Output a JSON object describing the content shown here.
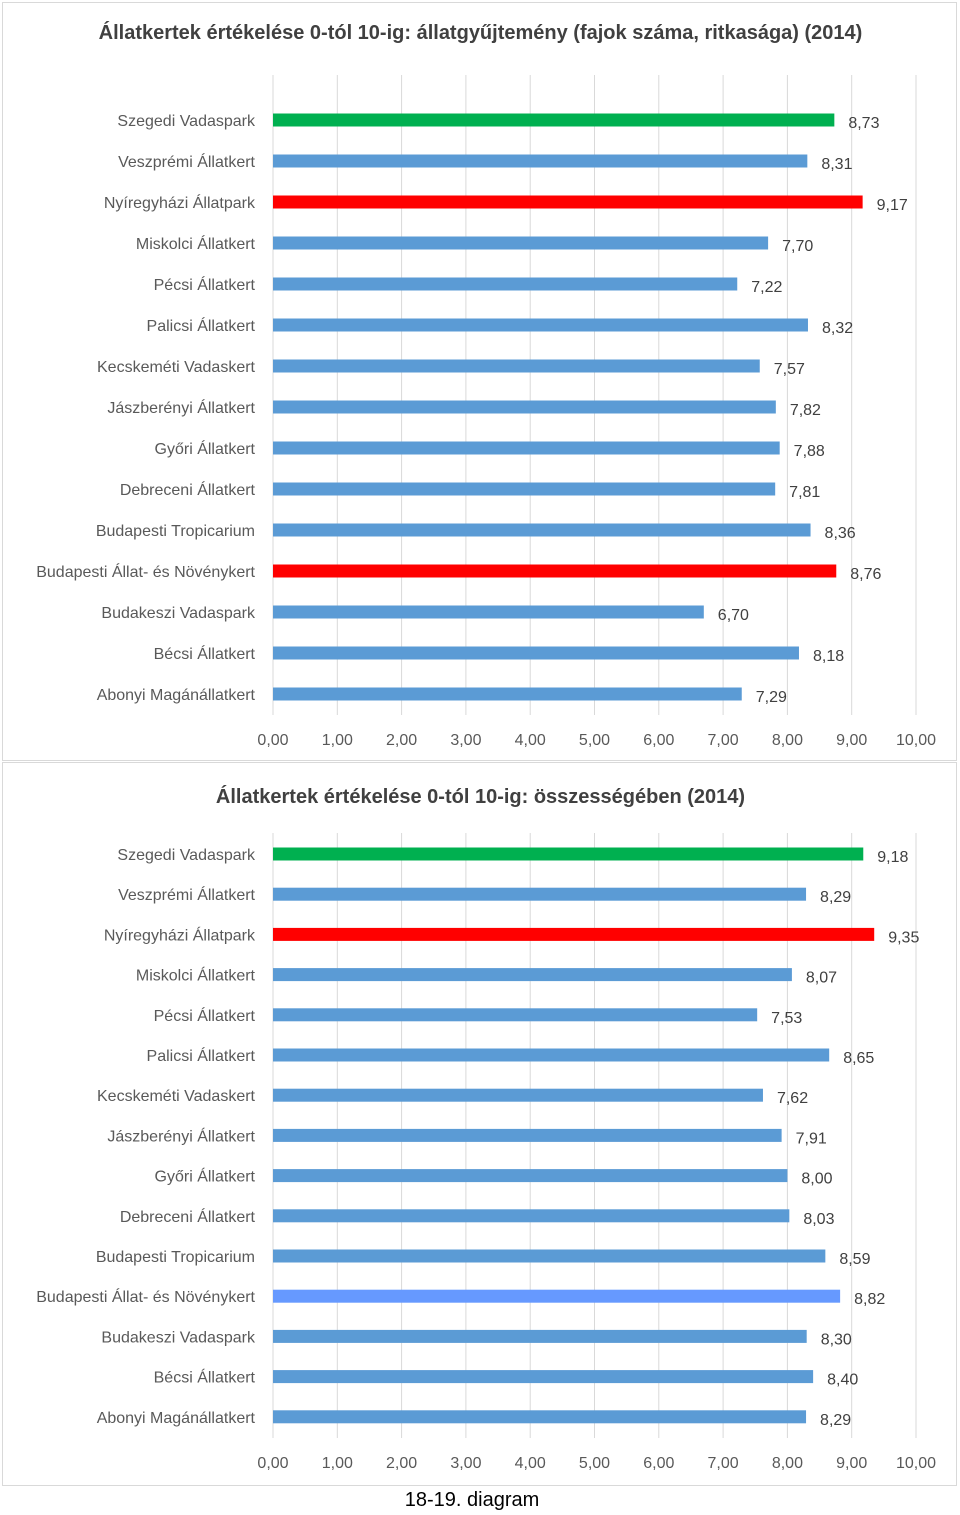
{
  "colors": {
    "default": "#5b9bd5",
    "highlight_green": "#00b050",
    "highlight_red": "#ff0000",
    "highlight_lightblue": "#6699ff",
    "grid": "#d9d9d9"
  },
  "chart_data": [
    {
      "type": "bar",
      "orientation": "horizontal",
      "title": "Állatkertek értékelése 0-tól 10-ig: állatgyűjtemény (fajok száma, ritkasága) (2014)",
      "categories": [
        "Szegedi Vadaspark",
        "Veszprémi Állatkert",
        "Nyíregyházi Állatpark",
        "Miskolci Állatkert",
        "Pécsi Állatkert",
        "Palicsi Állatkert",
        "Kecskeméti Vadaskert",
        "Jászberényi Állatkert",
        "Győri Állatkert",
        "Debreceni Állatkert",
        "Budapesti Tropicarium",
        "Budapesti Állat- és Növénykert",
        "Budakeszi Vadaspark",
        "Bécsi Állatkert",
        "Abonyi Magánállatkert"
      ],
      "values": [
        8.73,
        8.31,
        9.17,
        7.7,
        7.22,
        8.32,
        7.57,
        7.82,
        7.88,
        7.81,
        8.36,
        8.76,
        6.7,
        8.18,
        7.29
      ],
      "value_labels": [
        "8,73",
        "8,31",
        "9,17",
        "7,70",
        "7,22",
        "8,32",
        "7,57",
        "7,82",
        "7,88",
        "7,81",
        "8,36",
        "8,76",
        "6,70",
        "8,18",
        "7,29"
      ],
      "bar_colors": [
        "#00b050",
        "#5b9bd5",
        "#ff0000",
        "#5b9bd5",
        "#5b9bd5",
        "#5b9bd5",
        "#5b9bd5",
        "#5b9bd5",
        "#5b9bd5",
        "#5b9bd5",
        "#5b9bd5",
        "#ff0000",
        "#5b9bd5",
        "#5b9bd5",
        "#5b9bd5"
      ],
      "xlim": [
        0,
        10
      ],
      "xticks": [
        "0,00",
        "1,00",
        "2,00",
        "3,00",
        "4,00",
        "5,00",
        "6,00",
        "7,00",
        "8,00",
        "9,00",
        "10,00"
      ],
      "grid": true
    },
    {
      "type": "bar",
      "orientation": "horizontal",
      "title": "Állatkertek értékelése 0-tól 10-ig: összességében (2014)",
      "categories": [
        "Szegedi Vadaspark",
        "Veszprémi Állatkert",
        "Nyíregyházi Állatpark",
        "Miskolci Állatkert",
        "Pécsi Állatkert",
        "Palicsi Állatkert",
        "Kecskeméti Vadaskert",
        "Jászberényi Állatkert",
        "Győri Állatkert",
        "Debreceni Állatkert",
        "Budapesti Tropicarium",
        "Budapesti Állat- és Növénykert",
        "Budakeszi Vadaspark",
        "Bécsi Állatkert",
        "Abonyi Magánállatkert"
      ],
      "values": [
        9.18,
        8.29,
        9.35,
        8.07,
        7.53,
        8.65,
        7.62,
        7.91,
        8.0,
        8.03,
        8.59,
        8.82,
        8.3,
        8.4,
        8.29
      ],
      "value_labels": [
        "9,18",
        "8,29",
        "9,35",
        "8,07",
        "7,53",
        "8,65",
        "7,62",
        "7,91",
        "8,00",
        "8,03",
        "8,59",
        "8,82",
        "8,30",
        "8,40",
        "8,29"
      ],
      "bar_colors": [
        "#00b050",
        "#5b9bd5",
        "#ff0000",
        "#5b9bd5",
        "#5b9bd5",
        "#5b9bd5",
        "#5b9bd5",
        "#5b9bd5",
        "#5b9bd5",
        "#5b9bd5",
        "#5b9bd5",
        "#6699ff",
        "#5b9bd5",
        "#5b9bd5",
        "#5b9bd5"
      ],
      "xlim": [
        0,
        10
      ],
      "xticks": [
        "0,00",
        "1,00",
        "2,00",
        "3,00",
        "4,00",
        "5,00",
        "6,00",
        "7,00",
        "8,00",
        "9,00",
        "10,00"
      ],
      "grid": true
    }
  ],
  "caption": "18-19. diagram"
}
